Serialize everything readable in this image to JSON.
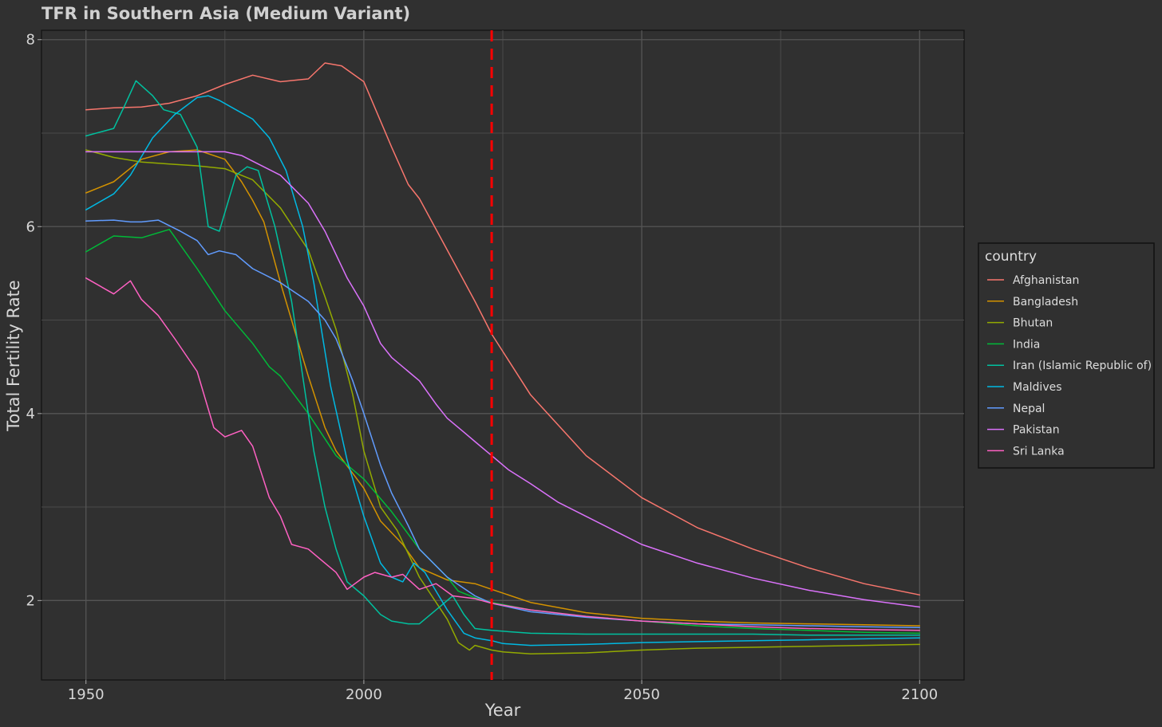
{
  "chart_data": {
    "type": "line",
    "title": "TFR in Southern Asia (Medium Variant)",
    "xlabel": "Year",
    "ylabel": "Total Fertility Rate",
    "xlim": [
      1942,
      2108
    ],
    "ylim": [
      1.15,
      8.1
    ],
    "x_ticks": [
      1950,
      2000,
      2050,
      2100
    ],
    "y_ticks": [
      2,
      4,
      6,
      8
    ],
    "grid": true,
    "legend": {
      "title": "country",
      "position": "right"
    },
    "reference_line": {
      "x": 2023,
      "color": "#ff0000",
      "style": "dashed"
    },
    "series": [
      {
        "name": "Afghanistan",
        "color": "#F8766D",
        "x": [
          1950,
          1955,
          1960,
          1965,
          1970,
          1975,
          1980,
          1985,
          1990,
          1993,
          1996,
          2000,
          2005,
          2008,
          2010,
          2015,
          2020,
          2023,
          2030,
          2040,
          2050,
          2060,
          2070,
          2080,
          2090,
          2100
        ],
        "y": [
          7.25,
          7.27,
          7.28,
          7.32,
          7.4,
          7.52,
          7.62,
          7.55,
          7.58,
          7.75,
          7.72,
          7.55,
          6.85,
          6.45,
          6.3,
          5.75,
          5.2,
          4.85,
          4.2,
          3.55,
          3.1,
          2.78,
          2.55,
          2.35,
          2.18,
          2.06
        ]
      },
      {
        "name": "Bangladesh",
        "color": "#D39200",
        "x": [
          1950,
          1955,
          1960,
          1965,
          1970,
          1975,
          1978,
          1980,
          1982,
          1985,
          1988,
          1990,
          1993,
          1995,
          2000,
          2003,
          2007,
          2010,
          2015,
          2020,
          2023,
          2030,
          2040,
          2050,
          2060,
          2070,
          2080,
          2090,
          2100
        ],
        "y": [
          6.36,
          6.48,
          6.72,
          6.8,
          6.82,
          6.72,
          6.48,
          6.28,
          6.05,
          5.4,
          4.8,
          4.4,
          3.85,
          3.6,
          3.2,
          2.85,
          2.6,
          2.35,
          2.22,
          2.18,
          2.12,
          1.98,
          1.87,
          1.81,
          1.78,
          1.76,
          1.75,
          1.74,
          1.73
        ]
      },
      {
        "name": "Bhutan",
        "color": "#93AA00",
        "x": [
          1950,
          1955,
          1960,
          1965,
          1970,
          1975,
          1980,
          1985,
          1990,
          1993,
          1995,
          1998,
          2000,
          2003,
          2006,
          2010,
          2015,
          2017,
          2019,
          2020,
          2023,
          2025,
          2030,
          2040,
          2050,
          2060,
          2070,
          2080,
          2090,
          2100
        ],
        "y": [
          6.82,
          6.74,
          6.69,
          6.67,
          6.65,
          6.62,
          6.5,
          6.2,
          5.75,
          5.25,
          4.9,
          4.2,
          3.6,
          3.0,
          2.75,
          2.25,
          1.8,
          1.55,
          1.47,
          1.52,
          1.47,
          1.45,
          1.43,
          1.44,
          1.47,
          1.49,
          1.5,
          1.51,
          1.52,
          1.53
        ]
      },
      {
        "name": "India",
        "color": "#00BA38",
        "x": [
          1950,
          1955,
          1960,
          1965,
          1970,
          1975,
          1980,
          1983,
          1985,
          1990,
          1995,
          2000,
          2005,
          2010,
          2015,
          2017,
          2020,
          2023,
          2030,
          2040,
          2050,
          2060,
          2070,
          2080,
          2090,
          2100
        ],
        "y": [
          5.73,
          5.9,
          5.88,
          5.97,
          5.55,
          5.1,
          4.75,
          4.5,
          4.4,
          4.0,
          3.55,
          3.3,
          2.95,
          2.55,
          2.25,
          2.1,
          2.03,
          1.98,
          1.9,
          1.83,
          1.78,
          1.73,
          1.7,
          1.68,
          1.66,
          1.65
        ]
      },
      {
        "name": "Iran (Islamic Republic of)",
        "color": "#00C19F",
        "x": [
          1950,
          1955,
          1957,
          1959,
          1962,
          1964,
          1967,
          1970,
          1972,
          1974,
          1977,
          1979,
          1981,
          1984,
          1987,
          1989,
          1991,
          1993,
          1995,
          1997,
          2000,
          2003,
          2005,
          2008,
          2010,
          2013,
          2016,
          2018,
          2020,
          2023,
          2030,
          2040,
          2050,
          2060,
          2070,
          2080,
          2090,
          2100
        ],
        "y": [
          6.97,
          7.05,
          7.3,
          7.56,
          7.4,
          7.25,
          7.2,
          6.85,
          6.0,
          5.95,
          6.55,
          6.64,
          6.6,
          6.0,
          5.2,
          4.4,
          3.6,
          3.0,
          2.55,
          2.2,
          2.05,
          1.85,
          1.78,
          1.75,
          1.75,
          1.9,
          2.05,
          1.85,
          1.7,
          1.68,
          1.65,
          1.64,
          1.64,
          1.64,
          1.64,
          1.63,
          1.63,
          1.63
        ]
      },
      {
        "name": "Maldives",
        "color": "#00B9E3",
        "x": [
          1950,
          1955,
          1958,
          1962,
          1966,
          1970,
          1972,
          1974,
          1977,
          1980,
          1983,
          1986,
          1989,
          1991,
          1994,
          1997,
          2000,
          2003,
          2005,
          2007,
          2009,
          2011,
          2013,
          2015,
          2018,
          2020,
          2023,
          2025,
          2030,
          2040,
          2050,
          2060,
          2070,
          2080,
          2090,
          2100
        ],
        "y": [
          6.18,
          6.35,
          6.55,
          6.95,
          7.2,
          7.38,
          7.4,
          7.35,
          7.25,
          7.15,
          6.95,
          6.6,
          6.0,
          5.4,
          4.3,
          3.5,
          2.9,
          2.4,
          2.25,
          2.2,
          2.4,
          2.3,
          2.1,
          1.9,
          1.65,
          1.6,
          1.57,
          1.54,
          1.52,
          1.53,
          1.55,
          1.56,
          1.57,
          1.58,
          1.59,
          1.6
        ]
      },
      {
        "name": "Nepal",
        "color": "#619CFF",
        "x": [
          1950,
          1955,
          1958,
          1960,
          1963,
          1967,
          1970,
          1972,
          1974,
          1977,
          1980,
          1985,
          1990,
          1993,
          1995,
          1998,
          2000,
          2003,
          2005,
          2008,
          2010,
          2015,
          2020,
          2023,
          2030,
          2040,
          2050,
          2060,
          2070,
          2080,
          2090,
          2100
        ],
        "y": [
          6.06,
          6.07,
          6.05,
          6.05,
          6.07,
          5.95,
          5.85,
          5.7,
          5.74,
          5.7,
          5.55,
          5.4,
          5.2,
          5.0,
          4.8,
          4.35,
          4.0,
          3.45,
          3.15,
          2.8,
          2.55,
          2.25,
          2.05,
          1.97,
          1.88,
          1.82,
          1.78,
          1.75,
          1.74,
          1.73,
          1.72,
          1.71
        ]
      },
      {
        "name": "Pakistan",
        "color": "#DB72FB",
        "x": [
          1950,
          1955,
          1960,
          1965,
          1970,
          1975,
          1978,
          1980,
          1985,
          1990,
          1993,
          1995,
          1997,
          2000,
          2003,
          2005,
          2008,
          2010,
          2013,
          2015,
          2018,
          2020,
          2023,
          2026,
          2030,
          2035,
          2040,
          2045,
          2050,
          2060,
          2070,
          2080,
          2090,
          2100
        ],
        "y": [
          6.8,
          6.8,
          6.8,
          6.8,
          6.8,
          6.8,
          6.76,
          6.7,
          6.55,
          6.25,
          5.95,
          5.7,
          5.45,
          5.15,
          4.75,
          4.6,
          4.45,
          4.35,
          4.1,
          3.95,
          3.8,
          3.7,
          3.55,
          3.4,
          3.25,
          3.05,
          2.9,
          2.75,
          2.6,
          2.4,
          2.24,
          2.11,
          2.01,
          1.93
        ]
      },
      {
        "name": "Sri Lanka",
        "color": "#FF61C3",
        "x": [
          1950,
          1955,
          1958,
          1960,
          1963,
          1966,
          1970,
          1973,
          1975,
          1978,
          1980,
          1983,
          1985,
          1987,
          1990,
          1992,
          1995,
          1997,
          2000,
          2002,
          2005,
          2007,
          2010,
          2013,
          2016,
          2020,
          2023,
          2030,
          2040,
          2050,
          2060,
          2070,
          2080,
          2090,
          2100
        ],
        "y": [
          5.45,
          5.28,
          5.42,
          5.22,
          5.05,
          4.8,
          4.45,
          3.85,
          3.75,
          3.82,
          3.65,
          3.1,
          2.9,
          2.6,
          2.55,
          2.45,
          2.3,
          2.12,
          2.25,
          2.3,
          2.25,
          2.28,
          2.12,
          2.18,
          2.05,
          2.02,
          1.97,
          1.9,
          1.83,
          1.78,
          1.75,
          1.72,
          1.7,
          1.69,
          1.68
        ]
      }
    ]
  }
}
